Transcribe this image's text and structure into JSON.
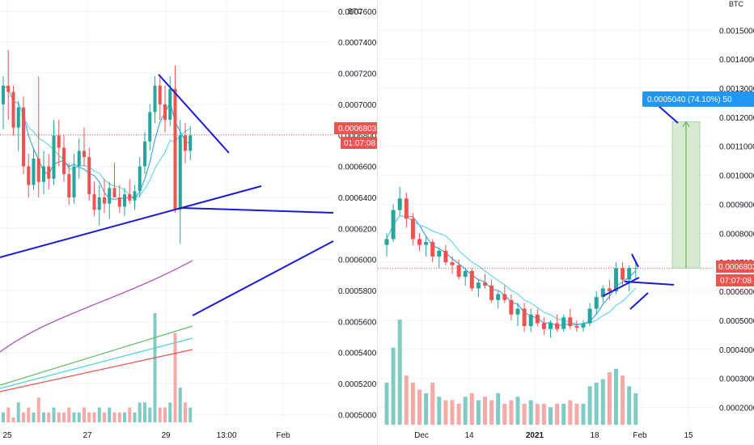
{
  "colors": {
    "up": "#26a69a",
    "down": "#ef5350",
    "vol_up": "#80cbc4",
    "vol_down": "#f7a9a7",
    "grid": "#f0f3fa",
    "trendline": "#1a1adb",
    "ma_fast": "#2196f3",
    "ma_slow": "#4dd0e1",
    "ma_purple": "#ab47bc",
    "ma_green": "#66bb6a",
    "ma_red": "#ef5350",
    "price_tag": "#ef5350",
    "measure_fill": "#d7ead0",
    "measure_line": "#4caf50",
    "measure_label": "#2196f3"
  },
  "chart_data": [
    {
      "id": "left",
      "type": "candlestick",
      "unit_label": "BTC",
      "y_ticks": [
        "0.0007600",
        "0.0007400",
        "0.0007200",
        "0.0007000",
        "0.0006800",
        "0.0006600",
        "0.0006400",
        "0.0006200",
        "0.0006000",
        "0.0005800",
        "0.0005600",
        "0.0005400",
        "0.0005200",
        "0.0005000"
      ],
      "ylim": [
        0.000495,
        0.000762
      ],
      "x_labels": [
        "25",
        "27",
        "29",
        "13:00",
        "Feb"
      ],
      "last_price": "0.0006803",
      "countdown": "01:07:08",
      "candles": [
        [
          0.0007,
          0.000718,
          0.000684,
          0.000712
        ],
        [
          0.000712,
          0.000735,
          0.00069,
          0.000708
        ],
        [
          0.000708,
          0.000712,
          0.00068,
          0.000685
        ],
        [
          0.000685,
          0.000702,
          0.00067,
          0.000698
        ],
        [
          0.000698,
          0.000705,
          0.000655,
          0.00066
        ],
        [
          0.00066,
          0.000668,
          0.00064,
          0.000648
        ],
        [
          0.000648,
          0.000672,
          0.000645,
          0.000665
        ],
        [
          0.000665,
          0.000718,
          0.00064,
          0.00065
        ],
        [
          0.00065,
          0.00067,
          0.000642,
          0.00066
        ],
        [
          0.00066,
          0.000668,
          0.000645,
          0.000652
        ],
        [
          0.000652,
          0.00069,
          0.000648,
          0.00068
        ],
        [
          0.00068,
          0.00069,
          0.00066,
          0.000672
        ],
        [
          0.000672,
          0.00068,
          0.00065,
          0.000655
        ],
        [
          0.000655,
          0.000662,
          0.000635,
          0.00064
        ],
        [
          0.00064,
          0.000668,
          0.000636,
          0.00066
        ],
        [
          0.00066,
          0.000678,
          0.000652,
          0.00067
        ],
        [
          0.00067,
          0.000685,
          0.00066,
          0.000666
        ],
        [
          0.000666,
          0.000672,
          0.000638,
          0.000642
        ],
        [
          0.000642,
          0.00065,
          0.000628,
          0.000632
        ],
        [
          0.000632,
          0.000648,
          0.000622,
          0.00064
        ],
        [
          0.00064,
          0.000652,
          0.00063,
          0.000636
        ],
        [
          0.000636,
          0.00065,
          0.000626,
          0.000646
        ],
        [
          0.000646,
          0.000662,
          0.00064,
          0.00064
        ],
        [
          0.00064,
          0.000648,
          0.00063,
          0.000634
        ],
        [
          0.000634,
          0.000646,
          0.000628,
          0.000642
        ],
        [
          0.000642,
          0.000652,
          0.000636,
          0.000638
        ],
        [
          0.000638,
          0.000648,
          0.000632,
          0.000644
        ],
        [
          0.000644,
          0.000666,
          0.00064,
          0.00066
        ],
        [
          0.00066,
          0.000682,
          0.000655,
          0.000676
        ],
        [
          0.000676,
          0.0007,
          0.00067,
          0.000695
        ],
        [
          0.000695,
          0.000718,
          0.000688,
          0.000712
        ],
        [
          0.000712,
          0.000718,
          0.00069,
          0.0007
        ],
        [
          0.0007,
          0.000712,
          0.000682,
          0.00069
        ],
        [
          0.00069,
          0.000718,
          0.000686,
          0.00071
        ],
        [
          0.00071,
          0.000725,
          0.00063,
          0.000632
        ],
        [
          0.000632,
          0.00069,
          0.00061,
          0.00068
        ],
        [
          0.00068,
          0.000688,
          0.000662,
          0.00067
        ],
        [
          0.00067,
          0.000686,
          0.000664,
          0.00068
        ]
      ],
      "volumes": [
        2,
        3,
        1,
        4,
        2,
        3,
        2,
        5,
        2,
        2,
        3,
        2,
        2,
        3,
        2,
        2,
        3,
        2,
        2,
        3,
        2,
        3,
        2,
        2,
        2,
        3,
        2,
        4,
        4,
        3,
        22,
        3,
        3,
        4,
        18,
        7,
        4,
        3
      ]
    },
    {
      "id": "right",
      "type": "candlestick",
      "unit_label": "BTC",
      "y_ticks": [
        "0.0015000",
        "0.0014000",
        "0.0013000",
        "0.0012000",
        "0.0011000",
        "0.0010000",
        "0.0009000",
        "0.0008000",
        "0.0007000",
        "0.0006000",
        "0.0005000",
        "0.0004000",
        "0.0003000",
        "0.0002000"
      ],
      "ylim": [
        0.00014,
        0.00159
      ],
      "x_labels": [
        "Dec",
        "14",
        "2021",
        "18",
        "Feb",
        "15"
      ],
      "last_price": "0.0006803",
      "countdown": "07:07:08",
      "measure_label": "0.0005040 (74.10%) 50",
      "measure_from": 0.00068,
      "measure_to": 0.001184,
      "candles": [
        [
          0.00076,
          0.0008,
          0.00072,
          0.00078
        ],
        [
          0.00078,
          0.0009,
          0.00077,
          0.00088
        ],
        [
          0.00088,
          0.00096,
          0.00086,
          0.00092
        ],
        [
          0.00092,
          0.00094,
          0.00082,
          0.00085
        ],
        [
          0.00085,
          0.00087,
          0.00076,
          0.00078
        ],
        [
          0.00078,
          0.0008,
          0.00074,
          0.00076
        ],
        [
          0.00076,
          0.00079,
          0.00072,
          0.00077
        ],
        [
          0.00077,
          0.00078,
          0.0007,
          0.00072
        ],
        [
          0.00072,
          0.00075,
          0.00068,
          0.00074
        ],
        [
          0.00074,
          0.00076,
          0.00069,
          0.0007
        ],
        [
          0.0007,
          0.00072,
          0.00066,
          0.00069
        ],
        [
          0.00069,
          0.00071,
          0.00064,
          0.00065
        ],
        [
          0.00065,
          0.00068,
          0.00062,
          0.00067
        ],
        [
          0.00067,
          0.00068,
          0.0006,
          0.00061
        ],
        [
          0.00061,
          0.00064,
          0.00058,
          0.00063
        ],
        [
          0.00063,
          0.00066,
          0.00061,
          0.00062
        ],
        [
          0.00062,
          0.00064,
          0.00056,
          0.00057
        ],
        [
          0.00057,
          0.0006,
          0.00054,
          0.00059
        ],
        [
          0.00059,
          0.00062,
          0.00056,
          0.00057
        ],
        [
          0.00057,
          0.00059,
          0.0005,
          0.00052
        ],
        [
          0.00052,
          0.00056,
          0.00048,
          0.00054
        ],
        [
          0.00054,
          0.00056,
          0.00046,
          0.00048
        ],
        [
          0.00048,
          0.00054,
          0.00046,
          0.00052
        ],
        [
          0.00052,
          0.00054,
          0.00048,
          0.00049
        ],
        [
          0.00049,
          0.00051,
          0.00045,
          0.00047
        ],
        [
          0.00047,
          0.0005,
          0.00044,
          0.00049
        ],
        [
          0.00049,
          0.00052,
          0.00046,
          0.00047
        ],
        [
          0.00047,
          0.00052,
          0.00046,
          0.00051
        ],
        [
          0.00051,
          0.00054,
          0.00047,
          0.00048
        ],
        [
          0.00048,
          0.0005,
          0.00046,
          0.000475
        ],
        [
          0.000475,
          0.0005,
          0.00046,
          0.00049
        ],
        [
          0.00049,
          0.00056,
          0.00048,
          0.00054
        ],
        [
          0.00054,
          0.0006,
          0.00052,
          0.00058
        ],
        [
          0.00058,
          0.00062,
          0.00056,
          0.00061
        ],
        [
          0.00061,
          0.00064,
          0.00057,
          0.0006
        ],
        [
          0.0006,
          0.0007,
          0.00059,
          0.00068
        ],
        [
          0.00068,
          0.0007,
          0.00062,
          0.00064
        ],
        [
          0.00064,
          0.00069,
          0.0006,
          0.00068
        ],
        [
          0.00068,
          0.0007,
          0.00064,
          0.00068
        ]
      ],
      "volumes": [
        60,
        110,
        150,
        70,
        60,
        50,
        45,
        60,
        40,
        35,
        35,
        30,
        40,
        45,
        35,
        40,
        35,
        45,
        30,
        35,
        40,
        30,
        35,
        30,
        30,
        25,
        30,
        30,
        35,
        30,
        30,
        55,
        60,
        65,
        75,
        80,
        70,
        55,
        45
      ]
    }
  ]
}
